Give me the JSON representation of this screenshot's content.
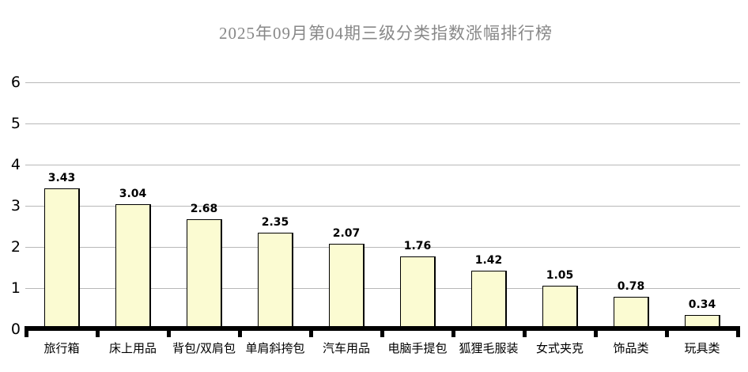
{
  "chart_data": {
    "type": "bar",
    "title": "2025年09月第04期三级分类指数涨幅排行榜",
    "categories": [
      "旅行箱",
      "床上用品",
      "背包/双肩包",
      "单肩斜挎包",
      "汽车用品",
      "电脑手提包",
      "狐狸毛服装",
      "女式夹克",
      "饰品类",
      "玩具类"
    ],
    "values": [
      3.43,
      3.04,
      2.68,
      2.35,
      2.07,
      1.76,
      1.42,
      1.05,
      0.78,
      0.34
    ],
    "value_labels": [
      "3.43",
      "3.04",
      "2.68",
      "2.35",
      "2.07",
      "1.76",
      "1.42",
      "1.05",
      "0.78",
      "0.34"
    ],
    "xlabel": "",
    "ylabel": "",
    "y_ticks": [
      "0",
      "1",
      "2",
      "3",
      "4",
      "5",
      "6"
    ],
    "ylim": [
      0,
      6
    ],
    "grid": true,
    "legend_position": "none",
    "colors": {
      "bar_fill": "#fbfbd2",
      "bar_border": "#000000",
      "gridline": "#b8b8b8",
      "axis": "#000000",
      "title_text": "#888888",
      "label_text": "#000000",
      "background": "#ffffff"
    }
  }
}
